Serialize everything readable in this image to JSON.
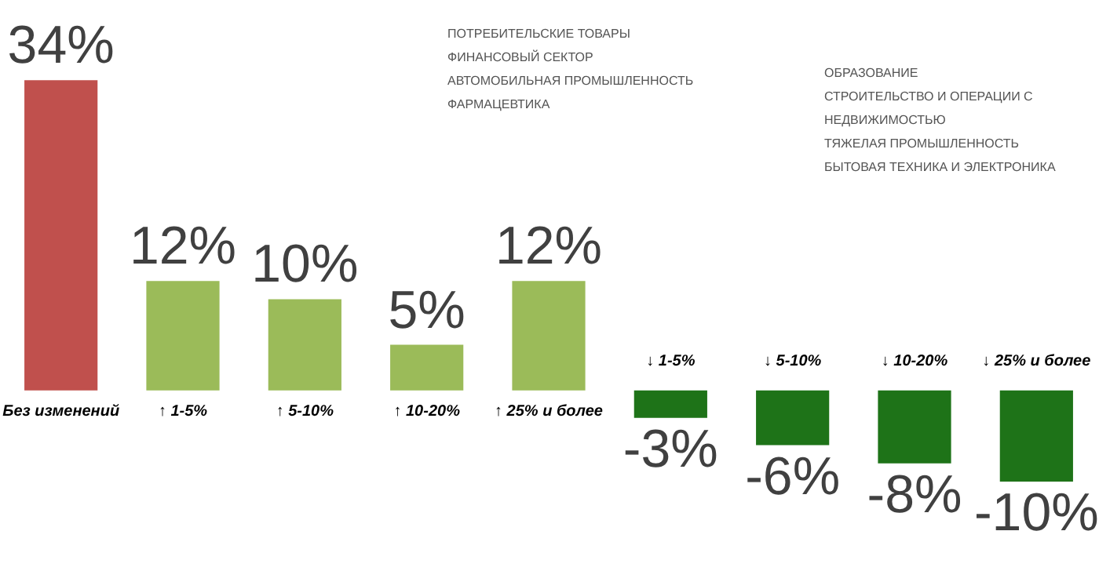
{
  "chart_data": {
    "type": "bar",
    "categories": [
      "Без изменений",
      "↑ 1-5%",
      "↑ 5-10%",
      "↑ 10-20%",
      "↑ 25% и более",
      "↓ 1-5%",
      "↓ 5-10%",
      "↓ 10-20%",
      "↓ 25% и более"
    ],
    "values": [
      34,
      12,
      10,
      5,
      12,
      -3,
      -6,
      -8,
      -10
    ],
    "value_labels": [
      "34%",
      "12%",
      "10%",
      "5%",
      "12%",
      "-3%",
      "-6%",
      "-8%",
      "-10%"
    ],
    "colors": [
      "#c0504d",
      "#9bbb59",
      "#9bbb59",
      "#9bbb59",
      "#9bbb59",
      "#1e7318",
      "#1e7318",
      "#1e7318",
      "#1e7318"
    ],
    "annotations": [
      "ПОТРЕБИТЕЛЬСКИЕ ТОВАРЫ",
      "ФИНАНСОВЫЙ СЕКТОР",
      "АВТОМОБИЛЬНАЯ ПРОМЫШЛЕННОСТЬ",
      "ФАРМАЦЕВТИКА",
      "ОБРАЗОВАНИЕ",
      "СТРОИТЕЛЬСТВО И ОПЕРАЦИИ С НЕДВИЖИМОСТЬЮ",
      "ТЯЖЕЛАЯ ПРОМЫШЛЕННОСТЬ",
      "БЫТОВАЯ ТЕХНИКА И ЭЛЕКТРОНИКА"
    ]
  }
}
